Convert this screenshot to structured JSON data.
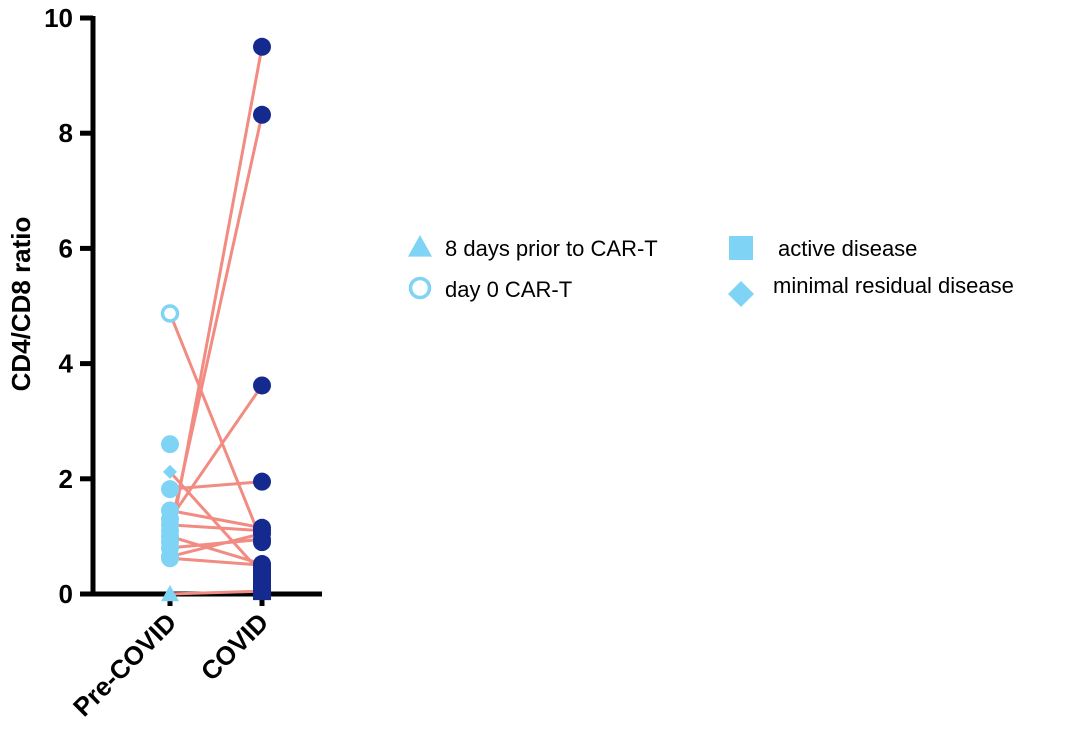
{
  "chart_data": {
    "type": "scatter",
    "title": "",
    "xlabel": "",
    "ylabel": "CD4/CD8 ratio",
    "categories": [
      "Pre-COVID",
      "COVID"
    ],
    "ylim": [
      0,
      10
    ],
    "yticks": [
      "0",
      "2",
      "4",
      "6",
      "8",
      "10"
    ],
    "colors": {
      "pre": "#7fd3f4",
      "covid": "#152a8f",
      "line": "#f28b82",
      "axis": "#000000"
    },
    "pairs": [
      {
        "pre": 0.0,
        "covid": 0.05,
        "pre_marker": "triangle",
        "covid_marker": "square"
      },
      {
        "pre": 0.65,
        "covid": 1.05,
        "pre_marker": "circle",
        "covid_marker": "circle"
      },
      {
        "pre": 0.9,
        "covid": 9.5,
        "pre_marker": "circle",
        "covid_marker": "circle"
      },
      {
        "pre": 1.1,
        "covid": 8.32,
        "pre_marker": "circle",
        "covid_marker": "circle"
      },
      {
        "pre": 1.3,
        "covid": 3.62,
        "pre_marker": "circle",
        "covid_marker": "circle"
      },
      {
        "pre": 4.87,
        "covid": 0.9,
        "pre_marker": "circle-open",
        "covid_marker": "circle"
      },
      {
        "pre": 1.82,
        "covid": 1.95,
        "pre_marker": "circle",
        "covid_marker": "circle"
      },
      {
        "pre": 2.12,
        "covid": 0.35,
        "pre_marker": "diamond",
        "covid_marker": "square"
      },
      {
        "pre": 1.45,
        "covid": 1.15,
        "pre_marker": "circle",
        "covid_marker": "circle"
      },
      {
        "pre": 1.0,
        "covid": 0.52,
        "pre_marker": "circle",
        "covid_marker": "circle"
      },
      {
        "pre": 0.62,
        "covid": 0.5,
        "pre_marker": "circle",
        "covid_marker": "circle"
      },
      {
        "pre": 0.8,
        "covid": 0.95,
        "pre_marker": "circle",
        "covid_marker": "circle"
      },
      {
        "pre": 1.2,
        "covid": 1.1,
        "pre_marker": "circle",
        "covid_marker": "circle"
      }
    ],
    "extra_pre_points": [
      2.6
    ],
    "legend": [
      {
        "marker": "triangle",
        "label": "8 days prior to CAR-T"
      },
      {
        "marker": "circle-open",
        "label": "day 0 CAR-T"
      },
      {
        "marker": "square",
        "label": "active disease"
      },
      {
        "marker": "diamond",
        "label": "minimal residual disease"
      }
    ]
  }
}
